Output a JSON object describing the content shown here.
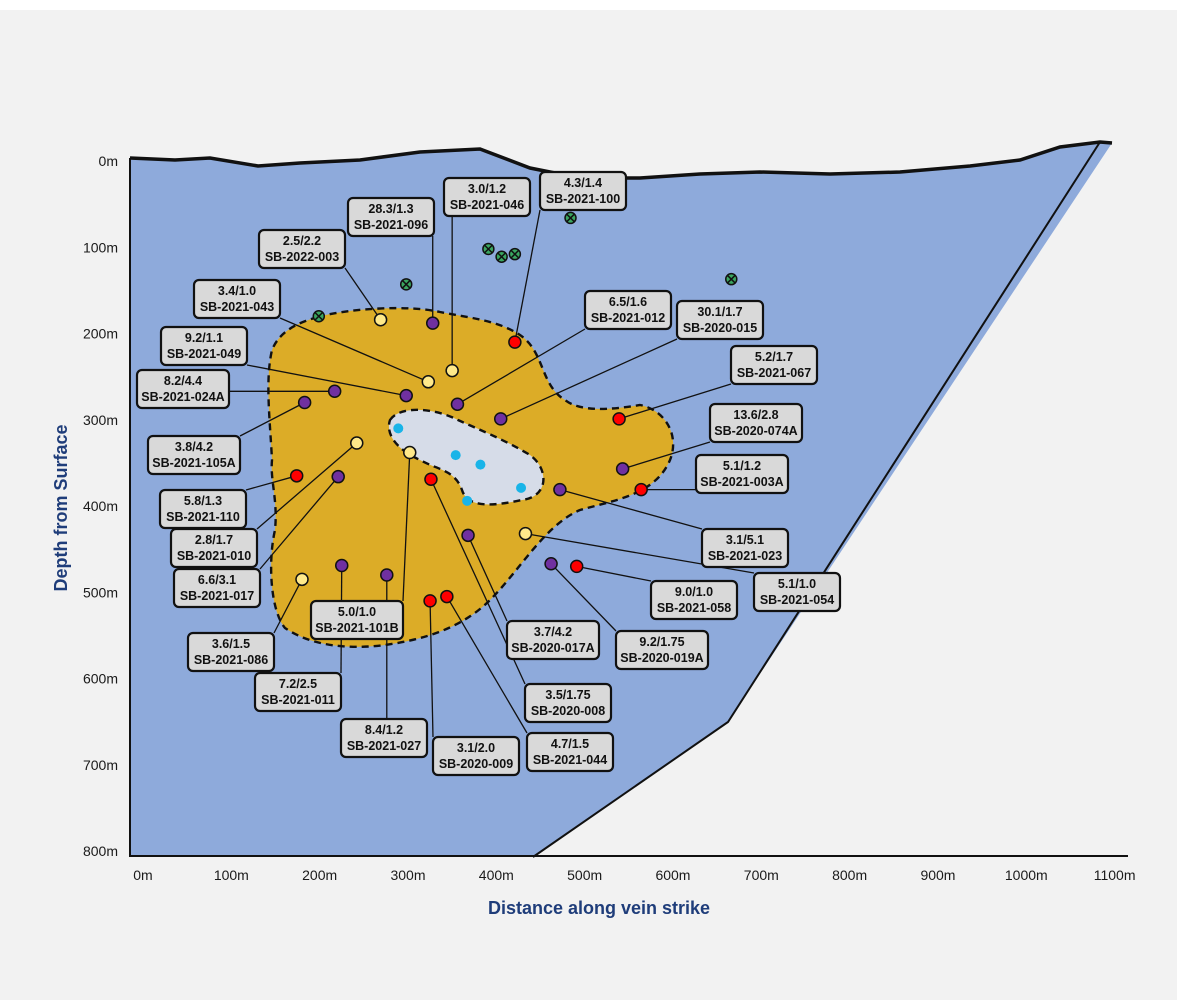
{
  "axes": {
    "y_title": "Depth from Surface",
    "x_title": "Distance along vein strike",
    "y_ticks": [
      "0m",
      "100m",
      "200m",
      "300m",
      "400m",
      "500m",
      "600m",
      "700m",
      "800m"
    ],
    "x_ticks": [
      "0m",
      "100m",
      "200m",
      "300m",
      "400m",
      "500m",
      "600m",
      "700m",
      "800m",
      "900m",
      "1000m",
      "1100m"
    ]
  },
  "colors": {
    "section_fill": "#8eaadb",
    "zone_fill": "#dcac27",
    "core_fill": "#d6dce8",
    "point_red": "#ff0000",
    "point_purple": "#7030a0",
    "point_yellow": "#ffe98a",
    "point_cyan": "#19b4e8",
    "point_green": "#3aa660",
    "axis_title_color": "#1f3d7a"
  },
  "drillholes": [
    {
      "id": "SB-2021-046",
      "grade": "3.0/1.2",
      "dist": 350,
      "depth": 243,
      "color": "yellow"
    },
    {
      "id": "SB-2021-100",
      "grade": "4.3/1.4",
      "dist": 421,
      "depth": 210,
      "color": "red"
    },
    {
      "id": "SB-2021-096",
      "grade": "28.3/1.3",
      "dist": 328,
      "depth": 188,
      "color": "purple"
    },
    {
      "id": "SB-2022-003",
      "grade": "2.5/2.2",
      "dist": 269,
      "depth": 184,
      "color": "yellow"
    },
    {
      "id": "SB-2021-043",
      "grade": "3.4/1.0",
      "dist": 323,
      "depth": 256,
      "color": "yellow"
    },
    {
      "id": "SB-2021-049",
      "grade": "9.2/1.1",
      "dist": 298,
      "depth": 272,
      "color": "purple"
    },
    {
      "id": "SB-2021-024A",
      "grade": "8.2/4.4",
      "dist": 217,
      "depth": 267,
      "color": "purple"
    },
    {
      "id": "SB-2021-105A",
      "grade": "3.8/4.2",
      "dist": 183,
      "depth": 280,
      "color": "purple"
    },
    {
      "id": "SB-2021-012",
      "grade": "6.5/1.6",
      "dist": 356,
      "depth": 282,
      "color": "purple"
    },
    {
      "id": "SB-2020-015",
      "grade": "30.1/1.7",
      "dist": 405,
      "depth": 299,
      "color": "purple"
    },
    {
      "id": "SB-2021-067",
      "grade": "5.2/1.7",
      "dist": 539,
      "depth": 299,
      "color": "red"
    },
    {
      "id": "SB-2020-074A",
      "grade": "13.6/2.8",
      "dist": 543,
      "depth": 357,
      "color": "purple"
    },
    {
      "id": "SB-2021-003A",
      "grade": "5.1/1.2",
      "dist": 564,
      "depth": 381,
      "color": "red"
    },
    {
      "id": "SB-2021-110",
      "grade": "5.8/1.3",
      "dist": 174,
      "depth": 365,
      "color": "red"
    },
    {
      "id": "SB-2021-010",
      "grade": "2.8/1.7",
      "dist": 242,
      "depth": 327,
      "color": "yellow"
    },
    {
      "id": "SB-2021-017",
      "grade": "6.6/3.1",
      "dist": 221,
      "depth": 366,
      "color": "purple"
    },
    {
      "id": "SB-2021-101B",
      "grade": "5.0/1.0",
      "dist": 302,
      "depth": 338,
      "color": "yellow"
    },
    {
      "id": "SB-2021-086",
      "grade": "3.6/1.5",
      "dist": 180,
      "depth": 485,
      "color": "yellow"
    },
    {
      "id": "SB-2021-011",
      "grade": "7.2/2.5",
      "dist": 225,
      "depth": 469,
      "color": "purple"
    },
    {
      "id": "SB-2021-027",
      "grade": "8.4/1.2",
      "dist": 276,
      "depth": 480,
      "color": "purple"
    },
    {
      "id": "SB-2021-023",
      "grade": "3.1/5.1",
      "dist": 472,
      "depth": 381,
      "color": "purple"
    },
    {
      "id": "SB-2021-054",
      "grade": "5.1/1.0",
      "dist": 433,
      "depth": 432,
      "color": "yellow"
    },
    {
      "id": "SB-2021-058",
      "grade": "9.0/1.0",
      "dist": 491,
      "depth": 470,
      "color": "red"
    },
    {
      "id": "SB-2020-019A",
      "grade": "9.2/1.75",
      "dist": 462,
      "depth": 467,
      "color": "purple"
    },
    {
      "id": "SB-2020-017A",
      "grade": "3.7/4.2",
      "dist": 368,
      "depth": 434,
      "color": "purple"
    },
    {
      "id": "SB-2020-008",
      "grade": "3.5/1.75",
      "dist": 326,
      "depth": 369,
      "color": "red"
    },
    {
      "id": "SB-2021-044",
      "grade": "4.7/1.5",
      "dist": 344,
      "depth": 505,
      "color": "red"
    },
    {
      "id": "SB-2020-009",
      "grade": "3.1/2.0",
      "dist": 325,
      "depth": 510,
      "color": "red"
    }
  ],
  "extra_points": [
    {
      "color": "cyan",
      "dist": 289,
      "depth": 310
    },
    {
      "color": "cyan",
      "dist": 354,
      "depth": 341
    },
    {
      "color": "cyan",
      "dist": 382,
      "depth": 352
    },
    {
      "color": "cyan",
      "dist": 367,
      "depth": 394
    },
    {
      "color": "cyan",
      "dist": 428,
      "depth": 379
    },
    {
      "color": "green",
      "dist": 199,
      "depth": 180
    },
    {
      "color": "green",
      "dist": 298,
      "depth": 143
    },
    {
      "color": "green",
      "dist": 391,
      "depth": 102
    },
    {
      "color": "green",
      "dist": 406,
      "depth": 111
    },
    {
      "color": "green",
      "dist": 421,
      "depth": 108
    },
    {
      "color": "green",
      "dist": 484,
      "depth": 66
    },
    {
      "color": "green",
      "dist": 666,
      "depth": 137
    }
  ]
}
